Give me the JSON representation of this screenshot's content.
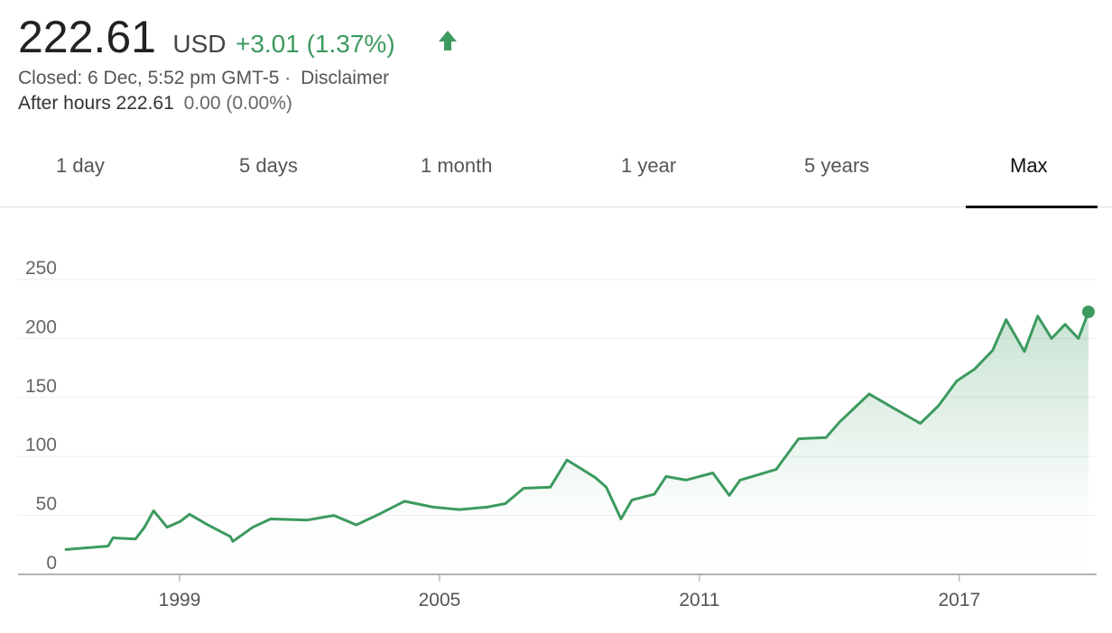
{
  "header": {
    "price": "222.61",
    "currency": "USD",
    "change": "+3.01 (1.37%)",
    "closed": "Closed: 6 Dec, 5:52 pm GMT-5 ·",
    "disclaimer": "Disclaimer",
    "after_hours": "After hours 222.61",
    "after_hours_change": "0.00 (0.00%)"
  },
  "tabs": {
    "items": [
      "1 day",
      "5 days",
      "1 month",
      "1 year",
      "5 years",
      "Max"
    ],
    "selected": 5
  },
  "chart_data": {
    "type": "line",
    "x": [
      1996.35,
      1997.35,
      1997.46,
      1997.98,
      1998.19,
      1998.4,
      1998.71,
      1999.02,
      1999.23,
      1999.65,
      2000.17,
      2000.23,
      2000.69,
      2001.1,
      2001.94,
      2002.56,
      2003.08,
      2003.6,
      2004.19,
      2004.85,
      2005.46,
      2006.1,
      2006.52,
      2006.94,
      2007.56,
      2007.94,
      2008.6,
      2008.85,
      2009.19,
      2009.44,
      2009.96,
      2010.23,
      2010.69,
      2011.31,
      2011.69,
      2011.94,
      2012.77,
      2013.29,
      2013.92,
      2014.23,
      2014.92,
      2015.48,
      2016.1,
      2016.52,
      2016.94,
      2017.35,
      2017.77,
      2018.08,
      2018.5,
      2018.81,
      2019.13,
      2019.44,
      2019.75,
      2019.98
    ],
    "series": [
      {
        "color": "#3c9a5f",
        "values": [
          21,
          24,
          31,
          30,
          40,
          54,
          40,
          45,
          51,
          42,
          32,
          28,
          40,
          47,
          46,
          50,
          42,
          51,
          62,
          57,
          55,
          57,
          60,
          73,
          74,
          97,
          82,
          74,
          47,
          63,
          68,
          83,
          80,
          86,
          67,
          80,
          89,
          115,
          116,
          129,
          153,
          141,
          128,
          143,
          164,
          174,
          190,
          216,
          189,
          219,
          200,
          212,
          200,
          222.61
        ]
      }
    ],
    "xlim": [
      1995.27,
      2020.17
    ],
    "xticks": [
      1999,
      2005,
      2011,
      2017
    ],
    "ylim": [
      0,
      250
    ],
    "yticks": [
      0,
      50,
      100,
      150,
      200,
      250
    ],
    "grid": true
  }
}
